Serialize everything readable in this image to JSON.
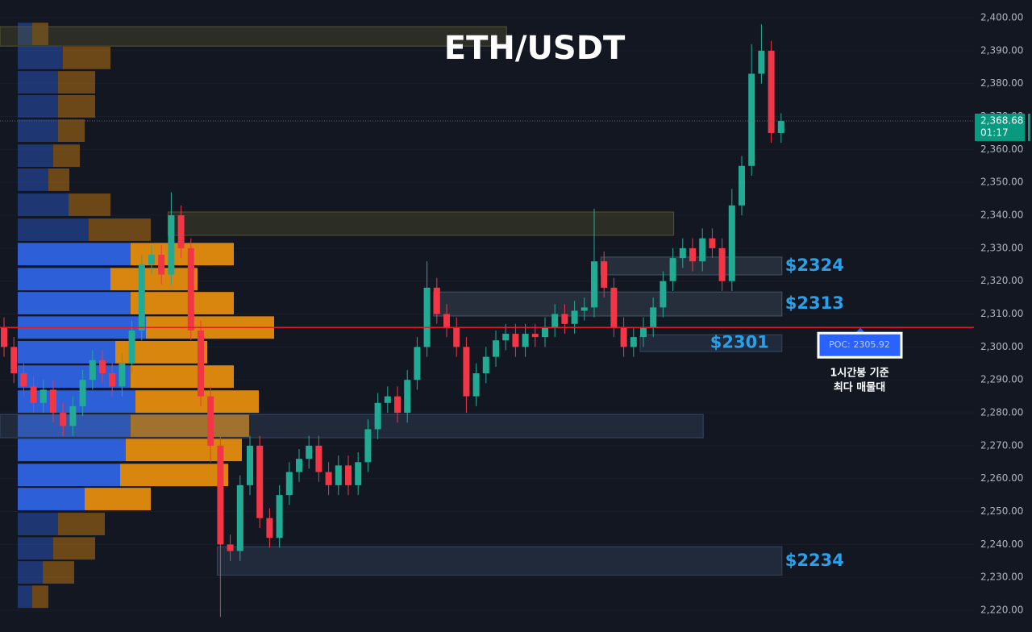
{
  "chart_data": {
    "type": "candlestick",
    "title": "ETH/USDT",
    "open": [
      2306,
      2300,
      2292,
      2288,
      2283,
      2287,
      2280,
      2276,
      2282,
      2290,
      2296,
      2292,
      2288,
      2295,
      2305,
      2325,
      2328,
      2322,
      2340,
      2330,
      2305,
      2285,
      2270,
      2240,
      2238,
      2258,
      2270,
      2248,
      2242,
      2255,
      2262,
      2266,
      2270,
      2262,
      2258,
      2264,
      2258,
      2265,
      2275,
      2283,
      2285,
      2280,
      2290,
      2300,
      2318,
      2310,
      2306,
      2300,
      2285,
      2292,
      2297,
      2302,
      2304,
      2300,
      2304,
      2303,
      2306,
      2310,
      2307,
      2311,
      2312,
      2326,
      2318,
      2306,
      2300,
      2303,
      2306,
      2312,
      2320,
      2327,
      2330,
      2326,
      2333,
      2330,
      2320,
      2343,
      2355,
      2383,
      2390,
      2365
    ],
    "high": [
      2309,
      2303,
      2295,
      2291,
      2290,
      2290,
      2283,
      2285,
      2293,
      2299,
      2299,
      2295,
      2298,
      2308,
      2328,
      2331,
      2331,
      2347,
      2343,
      2333,
      2308,
      2288,
      2273,
      2243,
      2261,
      2273,
      2273,
      2251,
      2258,
      2265,
      2269,
      2273,
      2273,
      2265,
      2267,
      2267,
      2268,
      2278,
      2286,
      2288,
      2288,
      2293,
      2303,
      2326,
      2321,
      2313,
      2309,
      2303,
      2295,
      2300,
      2305,
      2307,
      2307,
      2307,
      2307,
      2309,
      2313,
      2313,
      2314,
      2315,
      2342,
      2329,
      2321,
      2309,
      2306,
      2309,
      2315,
      2323,
      2330,
      2333,
      2333,
      2336,
      2336,
      2333,
      2348,
      2358,
      2392,
      2398,
      2393,
      2371
    ],
    "low": [
      2297,
      2289,
      2285,
      2280,
      2280,
      2277,
      2273,
      2273,
      2279,
      2287,
      2289,
      2285,
      2285,
      2292,
      2302,
      2322,
      2319,
      2319,
      2327,
      2302,
      2282,
      2265,
      2218,
      2235,
      2235,
      2255,
      2245,
      2239,
      2239,
      2252,
      2259,
      2263,
      2259,
      2255,
      2255,
      2255,
      2255,
      2262,
      2272,
      2280,
      2277,
      2277,
      2287,
      2297,
      2307,
      2303,
      2297,
      2280,
      2282,
      2289,
      2294,
      2299,
      2297,
      2297,
      2300,
      2300,
      2303,
      2304,
      2304,
      2308,
      2309,
      2315,
      2303,
      2297,
      2297,
      2300,
      2303,
      2309,
      2317,
      2324,
      2323,
      2323,
      2327,
      2317,
      2317,
      2340,
      2352,
      2380,
      2362,
      2362
    ],
    "close": [
      2300,
      2292,
      2288,
      2283,
      2287,
      2280,
      2276,
      2282,
      2290,
      2296,
      2292,
      2288,
      2295,
      2305,
      2325,
      2328,
      2322,
      2340,
      2330,
      2305,
      2285,
      2270,
      2240,
      2238,
      2258,
      2270,
      2248,
      2242,
      2255,
      2262,
      2266,
      2270,
      2262,
      2258,
      2264,
      2258,
      2265,
      2275,
      2283,
      2285,
      2280,
      2290,
      2300,
      2318,
      2310,
      2306,
      2300,
      2285,
      2292,
      2297,
      2302,
      2304,
      2300,
      2304,
      2303,
      2306,
      2310,
      2307,
      2311,
      2312,
      2326,
      2318,
      2306,
      2300,
      2303,
      2306,
      2312,
      2320,
      2327,
      2330,
      2326,
      2333,
      2330,
      2320,
      2343,
      2355,
      2383,
      2390,
      2365,
      2368.68
    ],
    "up_color": "#22ab94",
    "down_color": "#f23645",
    "ylim": [
      2213.4,
      2405.4
    ],
    "yticks": [
      {
        "value": 2220,
        "label": "2,220.00"
      },
      {
        "value": 2230,
        "label": "2,230.00"
      },
      {
        "value": 2240,
        "label": "2,240.00"
      },
      {
        "value": 2250,
        "label": "2,250.00"
      },
      {
        "value": 2260,
        "label": "2,260.00"
      },
      {
        "value": 2270,
        "label": "2,270.00"
      },
      {
        "value": 2280,
        "label": "2,280.00"
      },
      {
        "value": 2290,
        "label": "2,290.00"
      },
      {
        "value": 2300,
        "label": "2,300.00"
      },
      {
        "value": 2310,
        "label": "2,310.00"
      },
      {
        "value": 2320,
        "label": "2,320.00"
      },
      {
        "value": 2330,
        "label": "2,330.00"
      },
      {
        "value": 2340,
        "label": "2,340.00"
      },
      {
        "value": 2350,
        "label": "2,350.00"
      },
      {
        "value": 2360,
        "label": "2,360.00"
      },
      {
        "value": 2370,
        "label": "2,370.00"
      },
      {
        "value": 2380,
        "label": "2,380.00"
      },
      {
        "value": 2390,
        "label": "2,390.00"
      },
      {
        "value": 2400,
        "label": "2,400.00"
      }
    ],
    "grid": true,
    "last_price": {
      "value": 2368.68,
      "label": "2,368.68"
    },
    "countdown": "01:17",
    "poc": {
      "value": 2305.92,
      "label": "POC: 2305.92"
    },
    "poc_note": [
      "1시간봉 기준",
      "최다 매물대"
    ],
    "zones": [
      {
        "low": 2391.4,
        "high": 2397.3,
        "start": 0,
        "end": 51,
        "color": "#5c5a2e"
      },
      {
        "low": 2333.9,
        "high": 2341.0,
        "start": 17,
        "end": 68,
        "color": "#5c5a2e"
      },
      {
        "low": 2321.9,
        "high": 2327.3,
        "start": 61,
        "end": 79,
        "color": "#4a5a6a",
        "label": "$2324"
      },
      {
        "low": 2309.4,
        "high": 2316.7,
        "start": 44,
        "end": 79,
        "color": "#4a5a6a",
        "label": "$2313"
      },
      {
        "low": 2298.6,
        "high": 2303.7,
        "start": 65,
        "end": 79,
        "color": "#3a4d6a",
        "label": "$2301"
      },
      {
        "low": 2272.4,
        "high": 2279.5,
        "start": 0,
        "end": 71,
        "color": "#3a4d6a"
      },
      {
        "low": 2230.7,
        "high": 2239.3,
        "start": 22,
        "end": 79,
        "color": "#3a4d6a",
        "label": "$2234"
      }
    ],
    "profile": {
      "prices": [
        2395.1,
        2387.8,
        2380.4,
        2373.1,
        2365.7,
        2358.1,
        2350.8,
        2343.2,
        2335.6,
        2328.2,
        2320.6,
        2313.3,
        2305.9,
        2298.4,
        2291.0,
        2283.4,
        2276.1,
        2268.7,
        2261.1,
        2253.8,
        2246.2,
        2238.8,
        2231.5,
        2224.1
      ],
      "buy": [
        18,
        56,
        50,
        50,
        50,
        44,
        38,
        63,
        88,
        140,
        115,
        140,
        159,
        121,
        140,
        146,
        140,
        134,
        127,
        83,
        50,
        44,
        31,
        18
      ],
      "sell": [
        20,
        59,
        46,
        46,
        33,
        33,
        26,
        52,
        77,
        128,
        108,
        128,
        159,
        114,
        128,
        153,
        147,
        144,
        134,
        82,
        58,
        52,
        39,
        20
      ],
      "buy_color": "#2c5fd8",
      "sell_color": "#d9860f",
      "value_area": [
        2250,
        2330
      ]
    }
  }
}
